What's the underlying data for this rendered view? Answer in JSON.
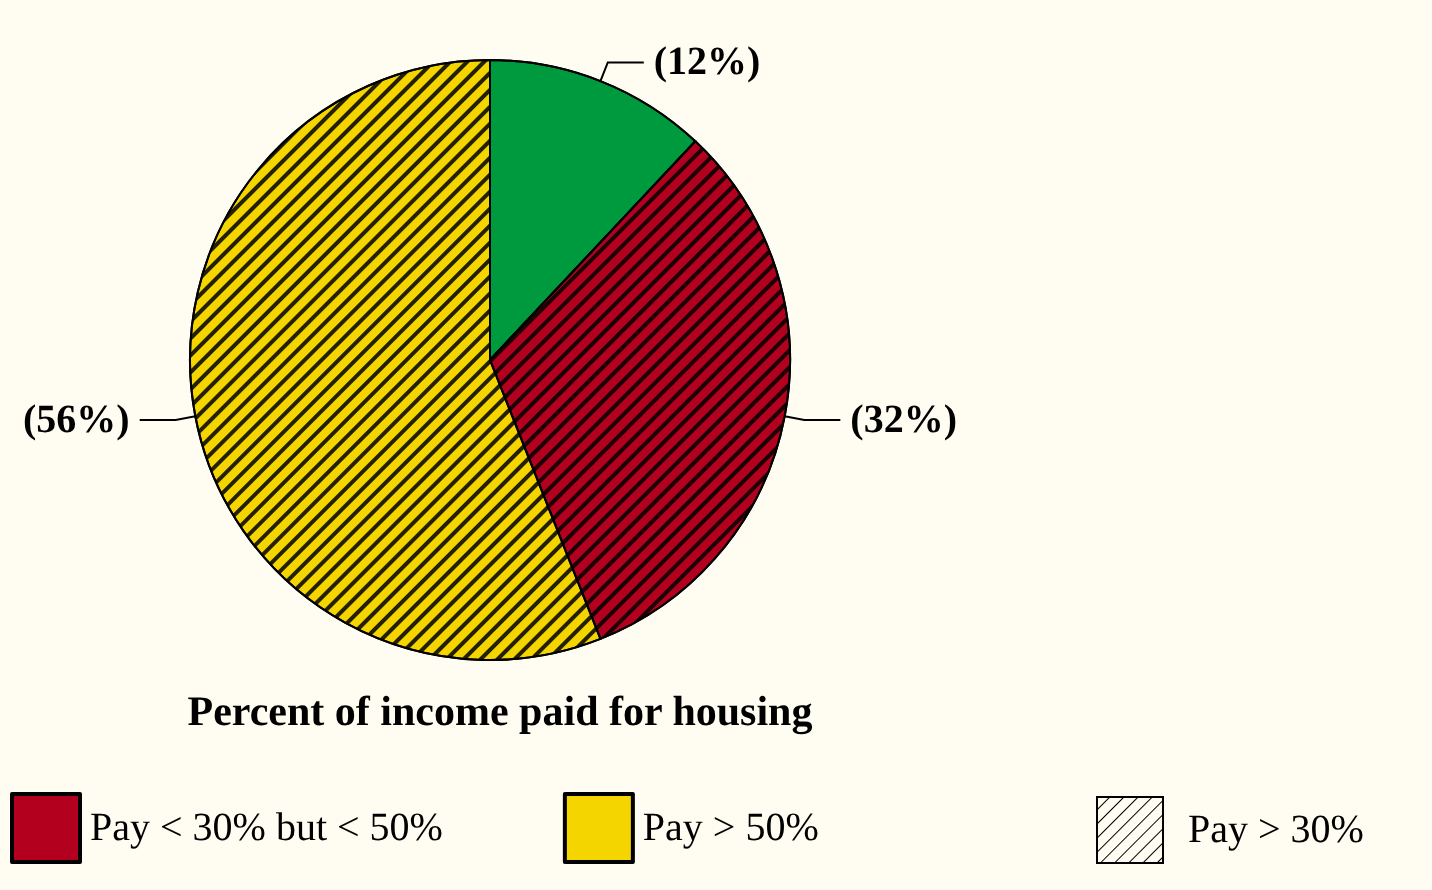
{
  "chart_data": {
    "type": "pie",
    "title": "Percent of income paid for housing",
    "categories": [
      null,
      "Pay < 30% but < 50%",
      "Pay > 50%"
    ],
    "values": [
      12,
      32,
      56
    ],
    "colors": [
      "#009a3e",
      "#b3001e",
      "#f5d500"
    ],
    "value_labels": [
      "(12%)",
      "(32%)",
      "(56%)"
    ],
    "annotations": [
      "Pay > 30%"
    ],
    "legend": "bottom"
  }
}
